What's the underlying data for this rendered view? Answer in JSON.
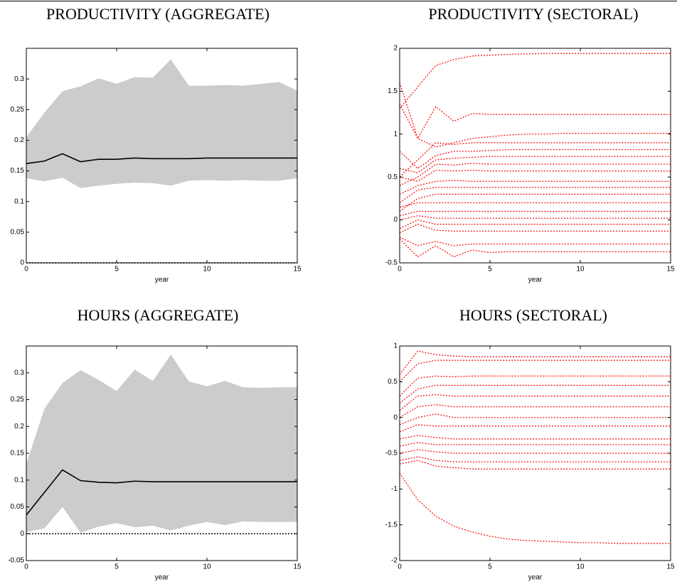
{
  "chart_data": [
    {
      "type": "line",
      "title": "PRODUCTIVITY (AGGREGATE)",
      "xlabel": "year",
      "x": [
        0,
        1,
        2,
        3,
        4,
        5,
        6,
        7,
        8,
        9,
        10,
        11,
        12,
        13,
        14,
        15
      ],
      "xlim": [
        0,
        15
      ],
      "xticks": [
        0,
        5,
        10,
        15
      ],
      "ylim": [
        0,
        0.35
      ],
      "yticks": [
        0,
        0.05,
        0.1,
        0.15,
        0.2,
        0.25,
        0.3
      ],
      "band": {
        "color": "#cccccc",
        "lower": [
          0.138,
          0.133,
          0.139,
          0.122,
          0.126,
          0.129,
          0.131,
          0.13,
          0.126,
          0.134,
          0.135,
          0.134,
          0.135,
          0.134,
          0.134,
          0.138
        ],
        "upper": [
          0.205,
          0.245,
          0.28,
          0.288,
          0.301,
          0.292,
          0.303,
          0.302,
          0.332,
          0.289,
          0.289,
          0.29,
          0.289,
          0.292,
          0.295,
          0.281
        ]
      },
      "series": [
        {
          "color": "#000000",
          "line_style": "solid",
          "values": [
            0.162,
            0.166,
            0.178,
            0.165,
            0.169,
            0.169,
            0.171,
            0.17,
            0.17,
            0.17,
            0.171,
            0.171,
            0.171,
            0.171,
            0.171,
            0.171
          ]
        }
      ],
      "reference_line": {
        "value": 0,
        "color": "#000000",
        "line_style": "dotted"
      }
    },
    {
      "type": "line",
      "title": "PRODUCTIVITY (SECTORAL)",
      "xlabel": "year",
      "x": [
        0,
        1,
        2,
        3,
        4,
        5,
        6,
        7,
        8,
        9,
        10,
        11,
        12,
        13,
        14,
        15
      ],
      "xlim": [
        0,
        15
      ],
      "xticks": [
        0,
        5,
        10,
        15
      ],
      "ylim": [
        -0.5,
        2
      ],
      "yticks": [
        -0.5,
        0,
        0.5,
        1,
        1.5,
        2
      ],
      "series": [
        {
          "color": "#ff0000",
          "line_style": "dotted",
          "values": [
            1.3,
            1.55,
            1.8,
            1.87,
            1.91,
            1.92,
            1.93,
            1.935,
            1.94,
            1.94,
            1.94,
            1.94,
            1.94,
            1.94,
            1.94,
            1.94
          ]
        },
        {
          "color": "#ff0000",
          "line_style": "dotted",
          "values": [
            1.6,
            0.95,
            1.32,
            1.15,
            1.24,
            1.23,
            1.23,
            1.23,
            1.23,
            1.23,
            1.23,
            1.23,
            1.23,
            1.23,
            1.23,
            1.23
          ]
        },
        {
          "color": "#ff0000",
          "line_style": "dotted",
          "values": [
            1.35,
            0.95,
            0.85,
            0.9,
            0.95,
            0.97,
            0.99,
            1.0,
            1.0,
            1.01,
            1.01,
            1.01,
            1.01,
            1.01,
            1.01,
            1.01
          ]
        },
        {
          "color": "#ff0000",
          "line_style": "dotted",
          "values": [
            0.5,
            0.7,
            0.9,
            0.88,
            0.9,
            0.9,
            0.9,
            0.9,
            0.9,
            0.9,
            0.9,
            0.9,
            0.9,
            0.9,
            0.9,
            0.9
          ]
        },
        {
          "color": "#ff0000",
          "line_style": "dotted",
          "values": [
            0.8,
            0.6,
            0.75,
            0.8,
            0.8,
            0.81,
            0.82,
            0.82,
            0.82,
            0.82,
            0.82,
            0.82,
            0.82,
            0.82,
            0.82,
            0.82
          ]
        },
        {
          "color": "#ff0000",
          "line_style": "dotted",
          "values": [
            0.6,
            0.55,
            0.7,
            0.72,
            0.73,
            0.74,
            0.74,
            0.74,
            0.74,
            0.74,
            0.74,
            0.74,
            0.74,
            0.74,
            0.74,
            0.74
          ]
        },
        {
          "color": "#ff0000",
          "line_style": "dotted",
          "values": [
            0.4,
            0.5,
            0.65,
            0.64,
            0.66,
            0.65,
            0.65,
            0.65,
            0.65,
            0.65,
            0.65,
            0.65,
            0.65,
            0.65,
            0.65,
            0.65
          ]
        },
        {
          "color": "#ff0000",
          "line_style": "dotted",
          "values": [
            0.5,
            0.45,
            0.58,
            0.57,
            0.58,
            0.57,
            0.57,
            0.57,
            0.57,
            0.57,
            0.57,
            0.57,
            0.57,
            0.57,
            0.57,
            0.57
          ]
        },
        {
          "color": "#ff0000",
          "line_style": "dotted",
          "values": [
            0.3,
            0.4,
            0.45,
            0.46,
            0.45,
            0.45,
            0.45,
            0.45,
            0.45,
            0.45,
            0.45,
            0.45,
            0.45,
            0.45,
            0.45,
            0.45
          ]
        },
        {
          "color": "#ff0000",
          "line_style": "dotted",
          "values": [
            0.2,
            0.35,
            0.38,
            0.38,
            0.38,
            0.38,
            0.38,
            0.38,
            0.38,
            0.38,
            0.38,
            0.38,
            0.38,
            0.38,
            0.38,
            0.38
          ]
        },
        {
          "color": "#ff0000",
          "line_style": "dotted",
          "values": [
            0.1,
            0.25,
            0.3,
            0.3,
            0.3,
            0.3,
            0.3,
            0.3,
            0.3,
            0.3,
            0.3,
            0.3,
            0.3,
            0.3,
            0.3,
            0.3
          ]
        },
        {
          "color": "#ff0000",
          "line_style": "dotted",
          "values": [
            0.15,
            0.2,
            0.2,
            0.2,
            0.2,
            0.2,
            0.2,
            0.2,
            0.2,
            0.2,
            0.2,
            0.2,
            0.2,
            0.2,
            0.2,
            0.2
          ]
        },
        {
          "color": "#ff0000",
          "line_style": "dotted",
          "values": [
            0.05,
            0.1,
            0.1,
            0.1,
            0.1,
            0.1,
            0.1,
            0.1,
            0.1,
            0.1,
            0.1,
            0.1,
            0.1,
            0.1,
            0.1,
            0.1
          ]
        },
        {
          "color": "#ff0000",
          "line_style": "dotted",
          "values": [
            0,
            0.05,
            0.02,
            0.02,
            0.02,
            0.02,
            0.02,
            0.02,
            0.02,
            0.02,
            0.02,
            0.02,
            0.02,
            0.02,
            0.02,
            0.02
          ]
        },
        {
          "color": "#ff0000",
          "line_style": "dotted",
          "values": [
            -0.1,
            0,
            -0.05,
            -0.05,
            -0.05,
            -0.05,
            -0.05,
            -0.05,
            -0.05,
            -0.05,
            -0.05,
            -0.05,
            -0.05,
            -0.05,
            -0.05,
            -0.05
          ]
        },
        {
          "color": "#ff0000",
          "line_style": "dotted",
          "values": [
            -0.15,
            -0.05,
            -0.12,
            -0.13,
            -0.13,
            -0.13,
            -0.13,
            -0.13,
            -0.13,
            -0.13,
            -0.13,
            -0.13,
            -0.13,
            -0.13,
            -0.13,
            -0.13
          ]
        },
        {
          "color": "#ff0000",
          "line_style": "dotted",
          "values": [
            -0.2,
            -0.3,
            -0.25,
            -0.3,
            -0.28,
            -0.28,
            -0.28,
            -0.28,
            -0.28,
            -0.28,
            -0.28,
            -0.28,
            -0.28,
            -0.28,
            -0.28,
            -0.28
          ]
        },
        {
          "color": "#ff0000",
          "line_style": "dotted",
          "values": [
            -0.22,
            -0.43,
            -0.3,
            -0.43,
            -0.35,
            -0.38,
            -0.37,
            -0.37,
            -0.37,
            -0.37,
            -0.37,
            -0.37,
            -0.37,
            -0.37,
            -0.37,
            -0.37
          ]
        }
      ]
    },
    {
      "type": "line",
      "title": "HOURS (AGGREGATE)",
      "xlabel": "year",
      "x": [
        0,
        1,
        2,
        3,
        4,
        5,
        6,
        7,
        8,
        9,
        10,
        11,
        12,
        13,
        14,
        15
      ],
      "xlim": [
        0,
        15
      ],
      "xticks": [
        0,
        5,
        10,
        15
      ],
      "ylim": [
        -0.05,
        0.35
      ],
      "yticks": [
        -0.05,
        0,
        0.05,
        0.1,
        0.15,
        0.2,
        0.25,
        0.3
      ],
      "band": {
        "color": "#cccccc",
        "lower": [
          0.003,
          0.01,
          0.05,
          0.002,
          0.013,
          0.02,
          0.012,
          0.015,
          0.006,
          0.015,
          0.022,
          0.016,
          0.023,
          0.022,
          0.022,
          0.022
        ],
        "upper": [
          0.13,
          0.233,
          0.281,
          0.305,
          0.287,
          0.266,
          0.306,
          0.285,
          0.334,
          0.284,
          0.275,
          0.285,
          0.273,
          0.272,
          0.273,
          0.273
        ]
      },
      "series": [
        {
          "color": "#000000",
          "line_style": "solid",
          "values": [
            0.035,
            0.077,
            0.119,
            0.099,
            0.096,
            0.095,
            0.098,
            0.097,
            0.097,
            0.097,
            0.097,
            0.097,
            0.097,
            0.097,
            0.097,
            0.097
          ]
        }
      ],
      "reference_line": {
        "value": 0,
        "color": "#000000",
        "line_style": "dotted"
      }
    },
    {
      "type": "line",
      "title": "HOURS (SECTORAL)",
      "xlabel": "year",
      "x": [
        0,
        1,
        2,
        3,
        4,
        5,
        6,
        7,
        8,
        9,
        10,
        11,
        12,
        13,
        14,
        15
      ],
      "xlim": [
        0,
        15
      ],
      "xticks": [
        0,
        5,
        10,
        15
      ],
      "ylim": [
        -2,
        1
      ],
      "yticks": [
        -2,
        -1.5,
        -1,
        -0.5,
        0,
        0.5,
        1
      ],
      "series": [
        {
          "color": "#ff0000",
          "line_style": "dotted",
          "values": [
            0.6,
            0.93,
            0.88,
            0.86,
            0.85,
            0.85,
            0.85,
            0.85,
            0.85,
            0.85,
            0.85,
            0.85,
            0.85,
            0.85,
            0.85,
            0.85
          ]
        },
        {
          "color": "#ff0000",
          "line_style": "dotted",
          "values": [
            0.5,
            0.75,
            0.8,
            0.8,
            0.8,
            0.8,
            0.8,
            0.8,
            0.8,
            0.8,
            0.8,
            0.8,
            0.8,
            0.8,
            0.8,
            0.8
          ]
        },
        {
          "color": "#ff0000",
          "line_style": "dotted",
          "values": [
            0.3,
            0.55,
            0.58,
            0.57,
            0.58,
            0.58,
            0.58,
            0.58,
            0.58,
            0.58,
            0.58,
            0.58,
            0.58,
            0.58,
            0.58,
            0.58
          ]
        },
        {
          "color": "#ff0000",
          "line_style": "dotted",
          "values": [
            0.2,
            0.4,
            0.45,
            0.45,
            0.45,
            0.45,
            0.45,
            0.45,
            0.45,
            0.45,
            0.45,
            0.45,
            0.45,
            0.45,
            0.45,
            0.45
          ]
        },
        {
          "color": "#ff0000",
          "line_style": "dotted",
          "values": [
            0.1,
            0.3,
            0.32,
            0.3,
            0.3,
            0.3,
            0.3,
            0.3,
            0.3,
            0.3,
            0.3,
            0.3,
            0.3,
            0.3,
            0.3,
            0.3
          ]
        },
        {
          "color": "#ff0000",
          "line_style": "dotted",
          "values": [
            0,
            0.15,
            0.18,
            0.15,
            0.15,
            0.15,
            0.15,
            0.15,
            0.15,
            0.15,
            0.15,
            0.15,
            0.15,
            0.15,
            0.15,
            0.15
          ]
        },
        {
          "color": "#ff0000",
          "line_style": "dotted",
          "values": [
            -0.1,
            0,
            0.05,
            0,
            0,
            0,
            0,
            0,
            0,
            0,
            0,
            0,
            0,
            0,
            0,
            0
          ]
        },
        {
          "color": "#ff0000",
          "line_style": "dotted",
          "values": [
            -0.2,
            -0.1,
            -0.12,
            -0.12,
            -0.12,
            -0.12,
            -0.12,
            -0.12,
            -0.12,
            -0.12,
            -0.12,
            -0.12,
            -0.12,
            -0.12,
            -0.12,
            -0.12
          ]
        },
        {
          "color": "#ff0000",
          "line_style": "dotted",
          "values": [
            -0.3,
            -0.25,
            -0.28,
            -0.3,
            -0.3,
            -0.3,
            -0.3,
            -0.3,
            -0.3,
            -0.3,
            -0.3,
            -0.3,
            -0.3,
            -0.3,
            -0.3,
            -0.3
          ]
        },
        {
          "color": "#ff0000",
          "line_style": "dotted",
          "values": [
            -0.4,
            -0.35,
            -0.38,
            -0.38,
            -0.38,
            -0.38,
            -0.38,
            -0.38,
            -0.38,
            -0.38,
            -0.38,
            -0.38,
            -0.38,
            -0.38,
            -0.38,
            -0.38
          ]
        },
        {
          "color": "#ff0000",
          "line_style": "dotted",
          "values": [
            -0.5,
            -0.45,
            -0.48,
            -0.5,
            -0.5,
            -0.5,
            -0.5,
            -0.5,
            -0.5,
            -0.5,
            -0.5,
            -0.5,
            -0.5,
            -0.5,
            -0.5,
            -0.5
          ]
        },
        {
          "color": "#ff0000",
          "line_style": "dotted",
          "values": [
            -0.6,
            -0.55,
            -0.6,
            -0.62,
            -0.62,
            -0.62,
            -0.62,
            -0.62,
            -0.62,
            -0.62,
            -0.62,
            -0.62,
            -0.62,
            -0.62,
            -0.62,
            -0.62
          ]
        },
        {
          "color": "#ff0000",
          "line_style": "dotted",
          "values": [
            -0.65,
            -0.6,
            -0.68,
            -0.7,
            -0.72,
            -0.72,
            -0.72,
            -0.72,
            -0.72,
            -0.72,
            -0.72,
            -0.72,
            -0.72,
            -0.72,
            -0.72,
            -0.72
          ]
        },
        {
          "color": "#ff0000",
          "line_style": "dotted",
          "values": [
            -0.78,
            -1.15,
            -1.38,
            -1.52,
            -1.6,
            -1.66,
            -1.7,
            -1.72,
            -1.73,
            -1.74,
            -1.75,
            -1.75,
            -1.76,
            -1.76,
            -1.76,
            -1.76
          ]
        }
      ]
    }
  ]
}
